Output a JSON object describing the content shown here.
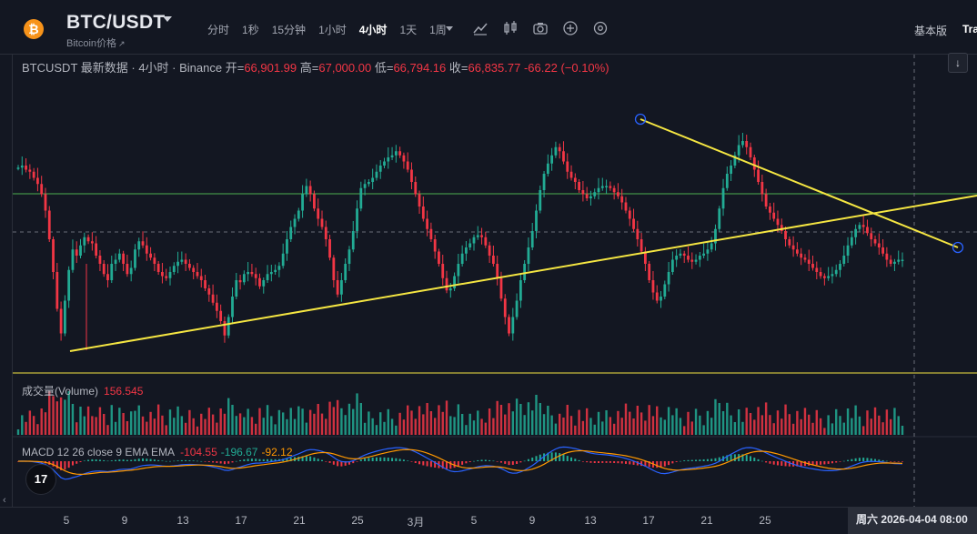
{
  "header": {
    "coin_icon": "bitcoin-icon",
    "symbol": "BTC/USDT",
    "sub_name": "Bitcoin价格",
    "sub_name_icon": "external-link-icon",
    "intervals": [
      "分时",
      "1秒",
      "15分钟",
      "1小时",
      "4小时",
      "1天",
      "1周"
    ],
    "active_interval": "4小时",
    "toolbar_icons": [
      "dropdown-caret-icon",
      "indicator-icon",
      "chart-style-icon",
      "camera-icon",
      "add-icon",
      "settings-icon"
    ],
    "version_label": "基本版",
    "trading_view_label": "Tra"
  },
  "legend": {
    "title": "BTCUSDT 最新数据 · 4小时 · Binance",
    "open_label": "开=",
    "open": "66,901.99",
    "high_label": "高=",
    "high": "67,000.00",
    "low_label": "低=",
    "low": "66,794.16",
    "close_label": "收=",
    "close": "66,835.77",
    "change": "-66.22 (−0.10%)"
  },
  "volume": {
    "label": "成交量(Volume)",
    "value": "156.545"
  },
  "macd": {
    "label": "MACD 12 26 close 9 EMA EMA",
    "macd_value": "-104.55",
    "signal_value": "-196.67",
    "hist_value": "-92.12"
  },
  "scroll_button_icon": "arrow-down-icon",
  "logo_text": "17",
  "time_axis": {
    "ticks": [
      "5",
      "9",
      "13",
      "17",
      "21",
      "25",
      "3月",
      "5",
      "9",
      "13",
      "17",
      "21",
      "25"
    ],
    "cursor_label": "周六 2026-04-04   08:00"
  },
  "colors": {
    "up": "#22ab94",
    "down": "#f23645",
    "trendline": "#f5e642",
    "level_line": "#4caf50",
    "background": "#131722"
  },
  "chart_data": {
    "type": "candlestick",
    "symbol": "BTCUSDT",
    "interval": "4小时",
    "exchange": "Binance",
    "last_ohlc": {
      "open": 66901.99,
      "high": 67000.0,
      "low": 66794.16,
      "close": 66835.77
    },
    "change": -66.22,
    "change_pct": -0.1,
    "x_ticks": [
      "5",
      "9",
      "13",
      "17",
      "21",
      "25",
      "3月",
      "5",
      "9",
      "13",
      "17",
      "21",
      "25"
    ],
    "path_shape": [
      0.87,
      0.88,
      0.86,
      0.85,
      0.82,
      0.79,
      0.74,
      0.66,
      0.52,
      0.36,
      0.18,
      0.06,
      0.22,
      0.37,
      0.47,
      0.44,
      0.49,
      0.53,
      0.51,
      0.5,
      0.44,
      0.4,
      0.35,
      0.32,
      0.4,
      0.42,
      0.45,
      0.4,
      0.35,
      0.38,
      0.47,
      0.51,
      0.49,
      0.45,
      0.43,
      0.4,
      0.36,
      0.34,
      0.33,
      0.36,
      0.39,
      0.41,
      0.42,
      0.4,
      0.38,
      0.36,
      0.34,
      0.32,
      0.28,
      0.25,
      0.21,
      0.17,
      0.12,
      0.05,
      0.14,
      0.24,
      0.32,
      0.31,
      0.35,
      0.36,
      0.35,
      0.33,
      0.29,
      0.32,
      0.35,
      0.36,
      0.37,
      0.39,
      0.45,
      0.52,
      0.58,
      0.62,
      0.66,
      0.74,
      0.78,
      0.74,
      0.67,
      0.62,
      0.58,
      0.52,
      0.43,
      0.32,
      0.25,
      0.32,
      0.4,
      0.47,
      0.56,
      0.67,
      0.77,
      0.79,
      0.8,
      0.82,
      0.85,
      0.88,
      0.9,
      0.92,
      0.93,
      0.95,
      0.93,
      0.9,
      0.86,
      0.8,
      0.74,
      0.68,
      0.62,
      0.57,
      0.52,
      0.46,
      0.4,
      0.33,
      0.27,
      0.28,
      0.34,
      0.4,
      0.45,
      0.48,
      0.5,
      0.53,
      0.54,
      0.53,
      0.49,
      0.44,
      0.4,
      0.33,
      0.23,
      0.14,
      0.06,
      0.14,
      0.22,
      0.32,
      0.4,
      0.48,
      0.56,
      0.66,
      0.76,
      0.84,
      0.89,
      0.93,
      0.97,
      0.95,
      0.9,
      0.85,
      0.82,
      0.8,
      0.76,
      0.74,
      0.72,
      0.73,
      0.75,
      0.77,
      0.78,
      0.78,
      0.77,
      0.75,
      0.73,
      0.7,
      0.66,
      0.62,
      0.57,
      0.52,
      0.46,
      0.4,
      0.32,
      0.26,
      0.22,
      0.24,
      0.3,
      0.36,
      0.42,
      0.44,
      0.45,
      0.44,
      0.42,
      0.41,
      0.42,
      0.44,
      0.45,
      0.47,
      0.5,
      0.57,
      0.67,
      0.77,
      0.84,
      0.88,
      0.93,
      0.98,
      1.0,
      0.97,
      0.92,
      0.86,
      0.8,
      0.74,
      0.68,
      0.65,
      0.62,
      0.59,
      0.56,
      0.52,
      0.49,
      0.47,
      0.45,
      0.43,
      0.42,
      0.4,
      0.38,
      0.36,
      0.34,
      0.33,
      0.34,
      0.35,
      0.37,
      0.4,
      0.44,
      0.49,
      0.53,
      0.57,
      0.59,
      0.58,
      0.55,
      0.52,
      0.5,
      0.48,
      0.45,
      0.42,
      0.4,
      0.41,
      0.42,
      0.42
    ]
  }
}
